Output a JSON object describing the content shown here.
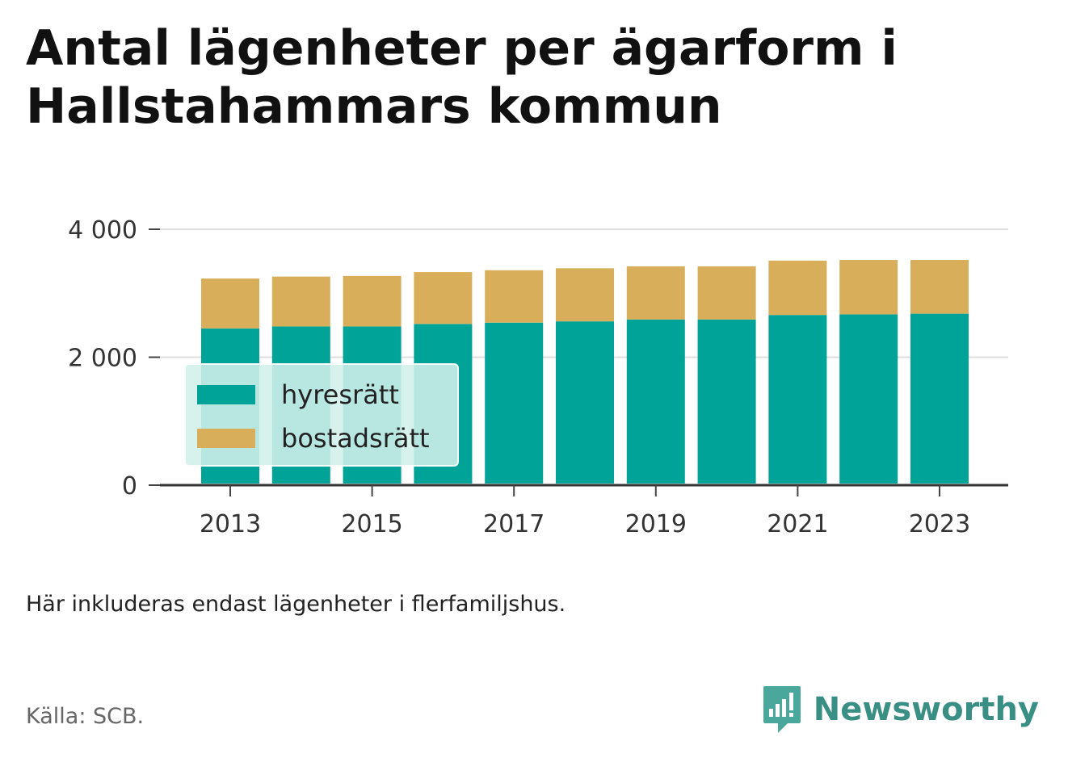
{
  "title": "Antal lägenheter per ägarform i Hallstahammars kommun",
  "note": "Här inkluderas endast lägenheter i flerfamiljshus.",
  "source": "Källa: SCB.",
  "brand": {
    "name": "Newsworthy",
    "icon": "newsworthy-logo-icon",
    "color": "#3a8f85"
  },
  "chart_data": {
    "type": "bar",
    "stacked": true,
    "categories": [
      "2013",
      "2014",
      "2015",
      "2016",
      "2017",
      "2018",
      "2019",
      "2020",
      "2021",
      "2022",
      "2023"
    ],
    "x_tick_labels": [
      "2013",
      "2015",
      "2017",
      "2019",
      "2021",
      "2023"
    ],
    "series": [
      {
        "name": "hyresrätt",
        "color": "#00a398",
        "values": [
          2450,
          2480,
          2480,
          2520,
          2540,
          2560,
          2590,
          2590,
          2660,
          2670,
          2680
        ]
      },
      {
        "name": "bostadsrätt",
        "color": "#d9ae5b",
        "values": [
          780,
          780,
          790,
          810,
          820,
          830,
          830,
          830,
          850,
          850,
          840
        ]
      }
    ],
    "ylim": [
      0,
      4000
    ],
    "y_ticks": [
      0,
      2000,
      4000
    ],
    "y_tick_labels": [
      "0",
      "2 000",
      "4 000"
    ],
    "xlabel": "",
    "ylabel": "",
    "grid": true,
    "legend": "inside-bottom-left"
  }
}
